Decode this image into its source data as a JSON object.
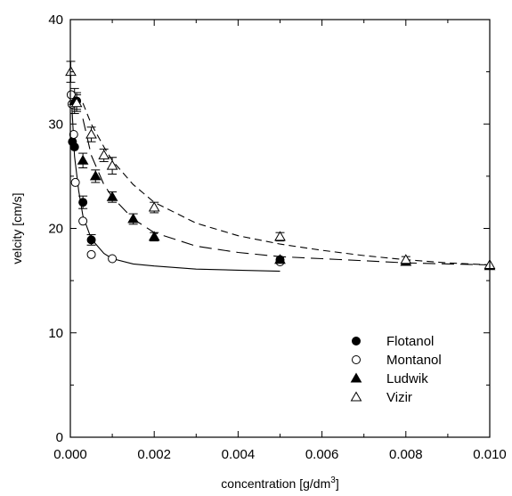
{
  "chart_data": {
    "type": "scatter",
    "title": "",
    "xlabel": "concentration [g/dm",
    "xlabel_sup": "3",
    "xlabel_end": "]",
    "ylabel": "velcity [cm/s]",
    "xlim": [
      0,
      0.01
    ],
    "ylim": [
      0,
      40
    ],
    "x_ticks": [
      "0.000",
      "0.002",
      "0.004",
      "0.006",
      "0.008",
      "0.010"
    ],
    "y_ticks": [
      "0",
      "10",
      "20",
      "30",
      "40"
    ],
    "legend_position": "bottom-right",
    "grid": false,
    "series": [
      {
        "name": "Flotanol",
        "marker": "filled-circle",
        "points": [
          {
            "x": 5e-05,
            "y": 28.3,
            "err": 0
          },
          {
            "x": 0.0001,
            "y": 27.8,
            "err": 0
          },
          {
            "x": 0.00015,
            "y": 32.2,
            "err": 0.8
          },
          {
            "x": 0.0003,
            "y": 22.5,
            "err": 0.6
          },
          {
            "x": 0.0005,
            "y": 18.9,
            "err": 0.5
          },
          {
            "x": 0.005,
            "y": 17.0,
            "err": 0
          }
        ],
        "fit": {
          "style": "solid",
          "x": [
            3e-05,
            0.0001,
            0.0002,
            0.0003,
            0.0005,
            0.0008,
            0.001,
            0.0015,
            0.002,
            0.003,
            0.004,
            0.005
          ],
          "y": [
            32.2,
            26.9,
            23.6,
            21.2,
            19.0,
            17.6,
            17.1,
            16.6,
            16.4,
            16.1,
            16.0,
            15.9
          ]
        }
      },
      {
        "name": "Montanol",
        "marker": "open-circle",
        "points": [
          {
            "x": 2e-05,
            "y": 32.8,
            "err": 0
          },
          {
            "x": 4e-05,
            "y": 31.9,
            "err": 0
          },
          {
            "x": 8e-05,
            "y": 29.0,
            "err": 0
          },
          {
            "x": 0.00012,
            "y": 24.4,
            "err": 0
          },
          {
            "x": 0.0003,
            "y": 20.7,
            "err": 0
          },
          {
            "x": 0.0005,
            "y": 17.5,
            "err": 0
          },
          {
            "x": 0.001,
            "y": 17.1,
            "err": 0
          },
          {
            "x": 0.005,
            "y": 16.8,
            "err": 0
          }
        ]
      },
      {
        "name": "Ludwik",
        "marker": "filled-triangle",
        "points": [
          {
            "x": 0.0001,
            "y": 32.2,
            "err": 1.2
          },
          {
            "x": 0.0003,
            "y": 26.5,
            "err": 0.7
          },
          {
            "x": 0.0006,
            "y": 25.0,
            "err": 0.6
          },
          {
            "x": 0.001,
            "y": 23.0,
            "err": 0.5
          },
          {
            "x": 0.0015,
            "y": 20.9,
            "err": 0.5
          },
          {
            "x": 0.002,
            "y": 19.2,
            "err": 0.4
          },
          {
            "x": 0.005,
            "y": 17.0,
            "err": 0
          },
          {
            "x": 0.008,
            "y": 16.8,
            "err": 0
          },
          {
            "x": 0.01,
            "y": 16.4,
            "err": 0
          }
        ],
        "fit": {
          "style": "long-dash",
          "x": [
            0.0003,
            0.0005,
            0.0008,
            0.001,
            0.0015,
            0.002,
            0.003,
            0.004,
            0.005,
            0.006,
            0.007,
            0.008,
            0.009,
            0.01
          ],
          "y": [
            30.5,
            27.0,
            24.2,
            23.0,
            20.9,
            19.6,
            18.3,
            17.7,
            17.3,
            17.1,
            16.9,
            16.7,
            16.6,
            16.5
          ]
        }
      },
      {
        "name": "Vizir",
        "marker": "open-triangle",
        "points": [
          {
            "x": 1e-05,
            "y": 35.0,
            "err": 1.0
          },
          {
            "x": 0.00015,
            "y": 32.0,
            "err": 0.8
          },
          {
            "x": 0.0005,
            "y": 29.0,
            "err": 0.7
          },
          {
            "x": 0.0008,
            "y": 27.0,
            "err": 0.6
          },
          {
            "x": 0.001,
            "y": 26.0,
            "err": 0.8
          },
          {
            "x": 0.002,
            "y": 22.0,
            "err": 0.5
          },
          {
            "x": 0.005,
            "y": 19.2,
            "err": 0.4
          },
          {
            "x": 0.008,
            "y": 17.0,
            "err": 0.3
          },
          {
            "x": 0.01,
            "y": 16.5,
            "err": 0
          }
        ],
        "fit": {
          "style": "short-dash",
          "x": [
            0.0003,
            0.0005,
            0.0008,
            0.001,
            0.0015,
            0.002,
            0.003,
            0.004,
            0.005,
            0.006,
            0.007,
            0.008,
            0.009,
            0.01
          ],
          "y": [
            32.0,
            30.0,
            27.8,
            26.5,
            24.2,
            22.5,
            20.5,
            19.3,
            18.5,
            17.9,
            17.4,
            17.0,
            16.7,
            16.5
          ]
        }
      }
    ]
  }
}
